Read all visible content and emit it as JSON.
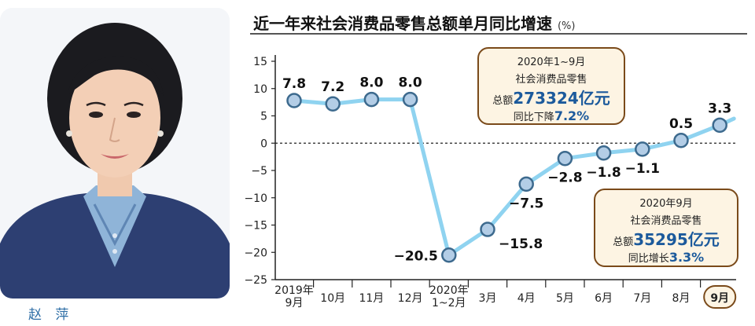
{
  "photo": {
    "caption": "赵 萍"
  },
  "title": {
    "main": "近一年来社会消费品零售总额单月同比增速",
    "unit": "(%)"
  },
  "callouts": {
    "annual": {
      "line1": "2020年1~9月",
      "line2": "社会消费品零售",
      "total_prefix": "总额",
      "total_value": "273324亿元",
      "change_prefix": "同比下降",
      "change_value": "7.2%"
    },
    "september": {
      "line1": "2020年9月",
      "line2": "社会消费品零售",
      "total_prefix": "总额",
      "total_value": "35295亿元",
      "change_prefix": "同比增长",
      "change_value": "3.3%"
    }
  },
  "colors": {
    "line": "#8fd3f0",
    "marker_fill": "#b3cde6",
    "marker_stroke": "#3d6a8e",
    "label": "#111111"
  },
  "chart_data": {
    "type": "line",
    "categories": [
      "2019年\n9月",
      "10月",
      "11月",
      "12月",
      "2020年\n1~2月",
      "3月",
      "4月",
      "5月",
      "6月",
      "7月",
      "8月",
      "9月"
    ],
    "values": [
      7.8,
      7.2,
      8.0,
      8.0,
      -20.5,
      -15.8,
      -7.5,
      -2.8,
      -1.8,
      -1.1,
      0.5,
      3.3
    ],
    "labels": [
      "7.8",
      "7.2",
      "8.0",
      "8.0",
      "−20.5",
      "−15.8",
      "−7.5",
      "−2.8",
      "−1.8",
      "−1.1",
      "0.5",
      "3.3"
    ],
    "yticks": [
      "15",
      "10",
      "5",
      "0",
      "−5",
      "−10",
      "−15",
      "−20",
      "−25"
    ],
    "ylim": [
      -25,
      15
    ],
    "reference_line": 0,
    "highlight_category": "9月"
  }
}
